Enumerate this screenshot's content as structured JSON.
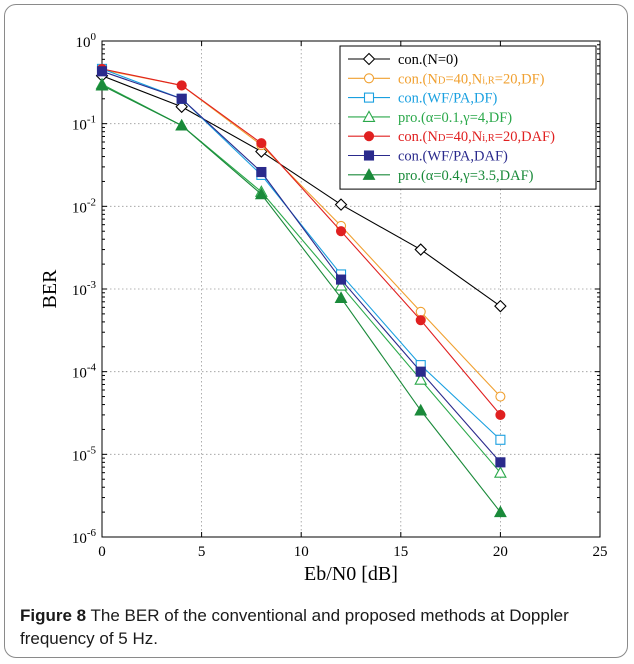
{
  "chart_data": {
    "type": "line",
    "xlabel": "Eb/N0 [dB]",
    "ylabel": "BER",
    "xlim": [
      0,
      25
    ],
    "ylim_log10": [
      -6,
      0
    ],
    "y_scale": "log",
    "grid": true,
    "legend_position": "top-right",
    "x_ticks": [
      "0",
      "5",
      "10",
      "15",
      "20",
      "25"
    ],
    "y_ticks": [
      {
        "base": "10",
        "exp": "0"
      },
      {
        "base": "10",
        "exp": "-1"
      },
      {
        "base": "10",
        "exp": "-2"
      },
      {
        "base": "10",
        "exp": "-3"
      },
      {
        "base": "10",
        "exp": "-4"
      },
      {
        "base": "10",
        "exp": "-5"
      },
      {
        "base": "10",
        "exp": "-6"
      }
    ],
    "x": [
      0,
      4,
      8,
      12,
      16,
      20
    ],
    "series": [
      {
        "name": "con.(N=0)",
        "color": "#000000",
        "marker": "diamond-open",
        "values": [
          0.38,
          0.16,
          0.046,
          0.0105,
          0.003,
          0.00062
        ]
      },
      {
        "name": "con.(ND=40,Ni,R=20,DF)",
        "color": "#f0a030",
        "marker": "circle-open",
        "values": [
          0.45,
          0.29,
          0.055,
          0.0058,
          0.00053,
          5e-05
        ]
      },
      {
        "name": "con.(WF/PA,DF)",
        "color": "#1aa0e0",
        "marker": "square-open",
        "values": [
          0.46,
          0.2,
          0.024,
          0.0015,
          0.00012,
          1.5e-05
        ]
      },
      {
        "name": "pro.(α=0.1,γ=4,DF)",
        "color": "#2aa84a",
        "marker": "triangle-open",
        "values": [
          0.3,
          0.095,
          0.015,
          0.0011,
          8e-05,
          6e-06
        ]
      },
      {
        "name": "con.(ND=40,Ni,R=20,DAF)",
        "color": "#e02020",
        "marker": "circle-filled",
        "values": [
          0.46,
          0.29,
          0.058,
          0.005,
          0.00042,
          3e-05
        ]
      },
      {
        "name": "con.(WF/PA,DAF)",
        "color": "#2a2a8c",
        "marker": "square-filled",
        "values": [
          0.43,
          0.2,
          0.026,
          0.0013,
          0.0001,
          8e-06
        ]
      },
      {
        "name": "pro.(α=0.4,γ=3.5,DAF)",
        "color": "#1a8a3a",
        "marker": "triangle-filled",
        "values": [
          0.29,
          0.095,
          0.014,
          0.00078,
          3.4e-05,
          2e-06
        ]
      }
    ],
    "legend_rich": [
      [
        {
          "t": "con.(N=0)"
        }
      ],
      [
        {
          "t": "con.(N"
        },
        {
          "t": "D",
          "small": true
        },
        {
          "t": "=40,N"
        },
        {
          "t": "i,R",
          "small": true
        },
        {
          "t": "=20,DF)"
        }
      ],
      [
        {
          "t": "con.(WF/PA,DF)"
        }
      ],
      [
        {
          "t": "pro.(α=0.1,γ=4,DF)"
        }
      ],
      [
        {
          "t": "con.(N"
        },
        {
          "t": "D",
          "small": true
        },
        {
          "t": "=40,N"
        },
        {
          "t": "i,R",
          "small": true
        },
        {
          "t": "=20,DAF)"
        }
      ],
      [
        {
          "t": "con.(WF/PA,DAF)"
        }
      ],
      [
        {
          "t": "pro.(α=0.4,γ=3.5,DAF)"
        }
      ]
    ]
  },
  "caption": {
    "label": "Figure 8",
    "text": " The BER of the conventional and proposed methods at Doppler frequency of 5 Hz."
  }
}
